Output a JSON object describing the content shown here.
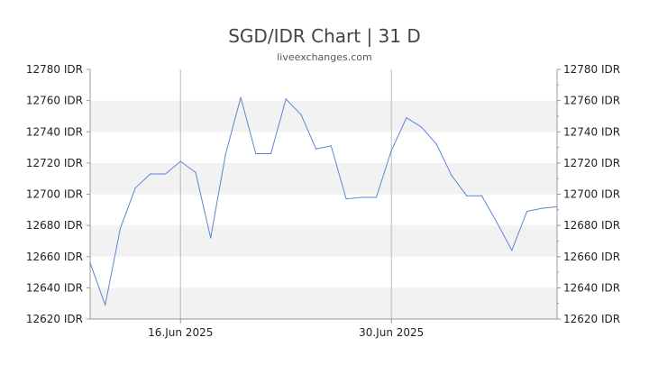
{
  "chart_data": {
    "type": "line",
    "title": "SGD/IDR Chart | 31 D",
    "subtitle": "liveexchanges.com",
    "xlabel": "",
    "ylabel": "",
    "ylim": [
      12620,
      12780
    ],
    "yticks": [
      12620,
      12640,
      12660,
      12680,
      12700,
      12720,
      12740,
      12760,
      12780
    ],
    "ytick_labels": [
      "12620 IDR",
      "12640 IDR",
      "12660 IDR",
      "12680 IDR",
      "12700 IDR",
      "12720 IDR",
      "12740 IDR",
      "12760 IDR",
      "12780 IDR"
    ],
    "xticks": [
      {
        "label": "16.Jun 2025",
        "index": 6
      },
      {
        "label": "30.Jun 2025",
        "index": 20
      }
    ],
    "grid": "alternating horizontal bands",
    "colors": {
      "line": "#5b86d6",
      "band": "#f2f2f2",
      "axis": "#999999",
      "vgrid": "#bbbbbb"
    },
    "series": [
      {
        "values": [
          12656,
          12629,
          12678,
          12704,
          12713,
          12713,
          12721,
          12714,
          12672,
          12726,
          12762,
          12726,
          12726,
          12761,
          12751,
          12729,
          12731,
          12697,
          12698,
          12698,
          12728,
          12749,
          12743,
          12732,
          12712,
          12699,
          12699,
          12682,
          12664,
          12689,
          12691,
          12692
        ]
      }
    ]
  }
}
